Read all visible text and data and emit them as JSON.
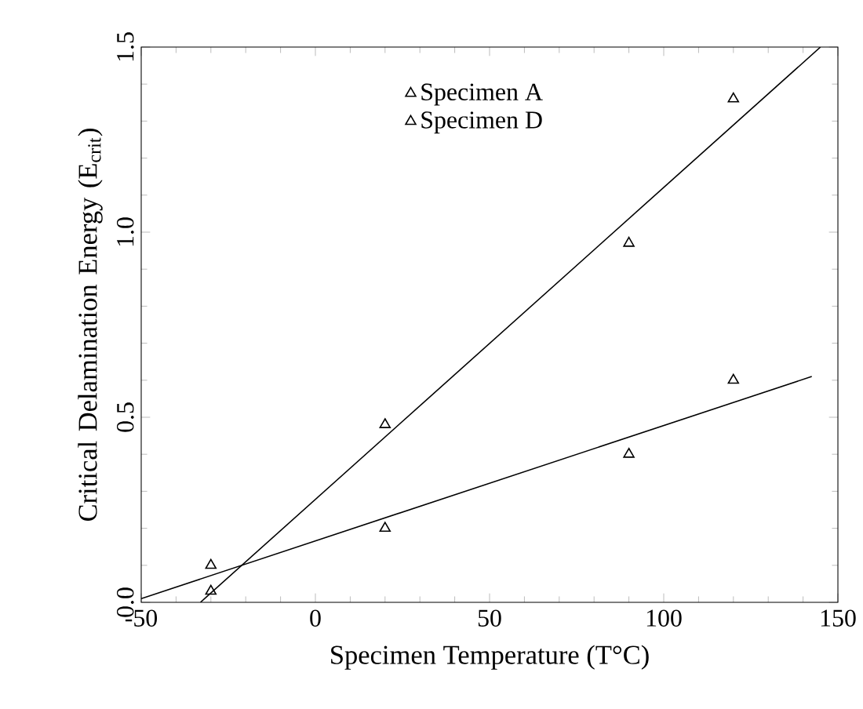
{
  "chart_data": {
    "type": "scatter",
    "xlabel": "Specimen Temperature (T°C)",
    "ylabel": "Critical Delamination Energy (E$_{crit}$)",
    "xlim": [
      -50,
      150
    ],
    "ylim": [
      0,
      1.5
    ],
    "xticks": [
      -50,
      0,
      50,
      100,
      150
    ],
    "yticks": [
      {
        "value": 0,
        "label": "0.0"
      },
      0.5,
      {
        "value": 1,
        "label": "1.0"
      },
      1.5
    ],
    "marker": "triangle",
    "legend": "top right",
    "grid": false,
    "series": [
      {
        "name": "Specimen A",
        "color": "#000000",
        "x": [
          -30,
          20,
          90,
          120
        ],
        "values": [
          0.03,
          0.48,
          0.97,
          1.36
        ]
      },
      {
        "name": "Specimen D",
        "color": "#000000",
        "x": [
          -30,
          20,
          90,
          120
        ],
        "values": [
          0.1,
          0.2,
          0.4,
          0.6
        ]
      },
      {
        "type": "line",
        "color": "#000000",
        "x": [
          -33,
          145
        ],
        "values": [
          0,
          1.5
        ],
        "marker": "none"
      },
      {
        "type": "line",
        "color": "#000000",
        "x": [
          -50,
          142.5
        ],
        "values": [
          0.01,
          0.61
        ],
        "marker": "none"
      }
    ]
  }
}
